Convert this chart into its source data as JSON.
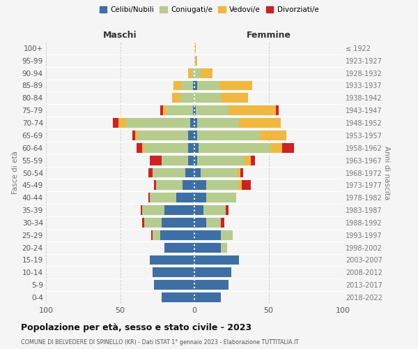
{
  "age_groups": [
    "0-4",
    "5-9",
    "10-14",
    "15-19",
    "20-24",
    "25-29",
    "30-34",
    "35-39",
    "40-44",
    "45-49",
    "50-54",
    "55-59",
    "60-64",
    "65-69",
    "70-74",
    "75-79",
    "80-84",
    "85-89",
    "90-94",
    "95-99",
    "100+"
  ],
  "birth_years": [
    "2018-2022",
    "2013-2017",
    "2008-2012",
    "2003-2007",
    "1998-2002",
    "1993-1997",
    "1988-1992",
    "1983-1987",
    "1978-1982",
    "1973-1977",
    "1968-1972",
    "1963-1967",
    "1958-1962",
    "1953-1957",
    "1948-1952",
    "1943-1947",
    "1938-1942",
    "1933-1937",
    "1928-1932",
    "1923-1927",
    "≤ 1922"
  ],
  "colors": {
    "celibe": "#3d6fa5",
    "coniugato": "#b5cc8e",
    "vedovo": "#f0b840",
    "divorziato": "#cc2222"
  },
  "maschi": {
    "celibe": [
      22,
      27,
      28,
      30,
      20,
      23,
      22,
      20,
      12,
      8,
      6,
      4,
      4,
      4,
      3,
      1,
      0,
      1,
      0,
      0,
      0
    ],
    "coniugato": [
      0,
      0,
      0,
      0,
      0,
      5,
      12,
      15,
      18,
      18,
      22,
      18,
      30,
      34,
      43,
      18,
      10,
      8,
      2,
      0,
      0
    ],
    "vedovo": [
      0,
      0,
      0,
      0,
      0,
      0,
      0,
      0,
      0,
      0,
      0,
      0,
      1,
      2,
      5,
      2,
      5,
      5,
      2,
      0,
      0
    ],
    "divorziato": [
      0,
      0,
      0,
      0,
      0,
      1,
      1,
      1,
      1,
      1,
      3,
      8,
      4,
      2,
      4,
      2,
      0,
      0,
      0,
      0,
      0
    ]
  },
  "femmine": {
    "nubile": [
      18,
      23,
      25,
      30,
      18,
      18,
      8,
      6,
      8,
      8,
      4,
      2,
      3,
      2,
      2,
      1,
      0,
      2,
      0,
      0,
      0
    ],
    "coniugata": [
      0,
      0,
      0,
      0,
      4,
      8,
      10,
      15,
      20,
      22,
      25,
      32,
      48,
      42,
      28,
      22,
      18,
      15,
      4,
      1,
      0
    ],
    "vedova": [
      0,
      0,
      0,
      0,
      0,
      0,
      0,
      0,
      0,
      2,
      2,
      4,
      8,
      18,
      28,
      32,
      18,
      22,
      8,
      1,
      1
    ],
    "divorziata": [
      0,
      0,
      0,
      0,
      0,
      0,
      2,
      2,
      0,
      6,
      2,
      3,
      8,
      0,
      0,
      2,
      0,
      0,
      0,
      0,
      0
    ]
  },
  "xlim": 100,
  "title": "Popolazione per età, sesso e stato civile - 2023",
  "subtitle": "COMUNE DI BELVEDERE DI SPINELLO (KR) - Dati ISTAT 1° gennaio 2023 - Elaborazione TUTTITALIA.IT",
  "xlabel_left": "Maschi",
  "xlabel_right": "Femmine",
  "ylabel": "Fasce di età",
  "ylabel_right": "Anni di nascita",
  "legend_labels": [
    "Celibi/Nubili",
    "Coniugati/e",
    "Vedovi/e",
    "Divorziati/e"
  ],
  "bg_color": "#f5f5f5",
  "grid_color": "#cccccc"
}
